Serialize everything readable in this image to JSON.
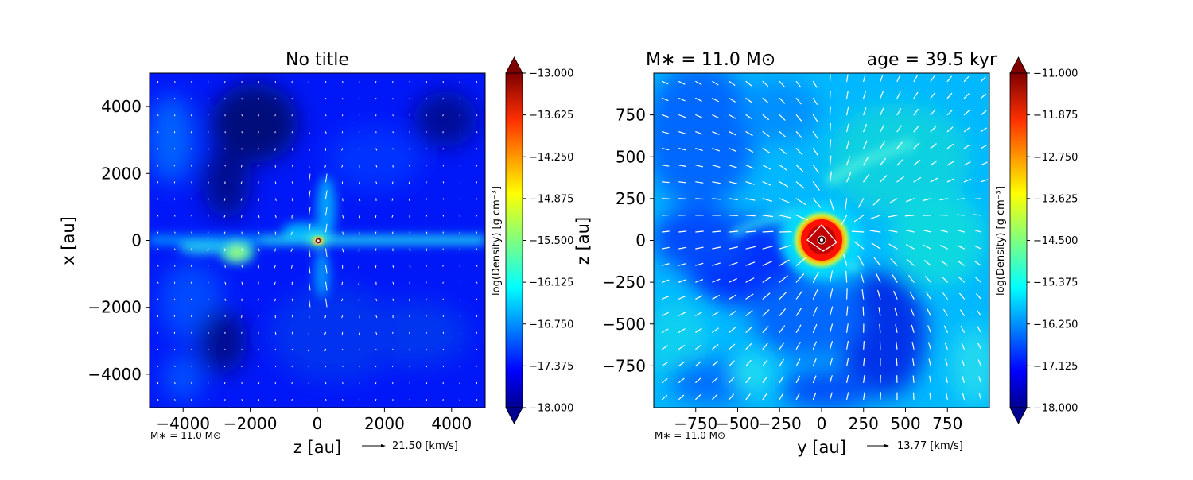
{
  "chart_data": [
    {
      "type": "heatmap",
      "title": "No title",
      "xlabel": "z [au]",
      "ylabel": "x [au]",
      "xlim": [
        -5000,
        5000
      ],
      "ylim": [
        -5000,
        5000
      ],
      "xticks": [
        -4000,
        -2000,
        0,
        2000,
        4000
      ],
      "yticks": [
        -4000,
        -2000,
        0,
        2000,
        4000
      ],
      "colorbar": {
        "label": "log(Density) [g cm$^{-3}$]",
        "range": [
          -18.0,
          -13.0
        ],
        "ticks": [
          "-13.000",
          "-13.625",
          "-14.250",
          "-14.875",
          "-15.500",
          "-16.125",
          "-16.750",
          "-17.375",
          "-18.000"
        ]
      },
      "footer_mass": "M$_*$ = 11.0 M$_\\odot$",
      "vector_key": "21.50 [km/s]"
    },
    {
      "type": "heatmap",
      "title_left": "M$_*$ = 11.0 M$_\\odot$",
      "title_right": "age = 39.5 kyr",
      "xlabel": "y [au]",
      "ylabel": "z [au]",
      "xlim": [
        -1000,
        1000
      ],
      "ylim": [
        -1000,
        1000
      ],
      "xticks": [
        -750,
        -500,
        -250,
        0,
        250,
        500,
        750
      ],
      "yticks": [
        -750,
        -500,
        -250,
        0,
        250,
        500,
        750
      ],
      "colorbar": {
        "label": "log(Density) [g cm$^{-3}$]",
        "range": [
          -18.0,
          -11.0
        ],
        "ticks": [
          "-11.000",
          "-11.875",
          "-12.750",
          "-13.625",
          "-14.500",
          "-15.375",
          "-16.250",
          "-17.125",
          "-18.000"
        ]
      },
      "footer_mass": "M$_*$ = 11.0 M$_\\odot$",
      "vector_key": "13.77 [km/s]"
    }
  ],
  "display": {
    "left_title": "No title",
    "left_xlabel": "z [au]",
    "left_ylabel": "x [au]",
    "left_cbar_label": "log(Density) [g cm⁻³]",
    "left_footer_mass": "M∗ = 11.0 M⊙",
    "left_key": "21.50 [km/s]",
    "right_title_left": "M∗ = 11.0 M⊙",
    "right_title_right": "age = 39.5 kyr",
    "right_xlabel": "y [au]",
    "right_ylabel": "z [au]",
    "right_cbar_label": "log(Density) [g cm⁻³]",
    "right_footer_mass": "M∗ = 11.0 M⊙",
    "right_key": "13.77 [km/s]"
  },
  "colors": {
    "jet": [
      "#00008f",
      "#0000ff",
      "#007fff",
      "#00ffff",
      "#7fff7f",
      "#ffff00",
      "#ff7f00",
      "#ff0000",
      "#7f0000"
    ],
    "vectors": "#ffffff"
  }
}
